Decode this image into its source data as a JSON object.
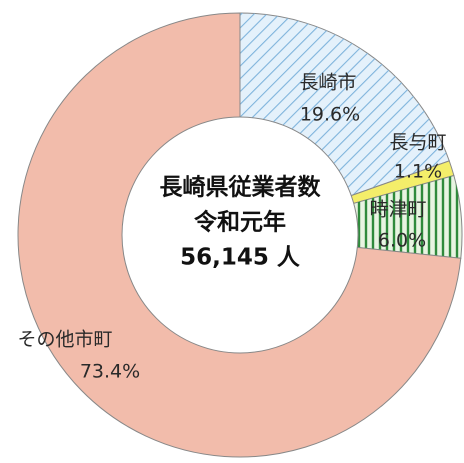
{
  "chart_data": {
    "type": "donut",
    "center_text": [
      "長崎県従業者数",
      "令和元年",
      "56,145 人"
    ],
    "categories": [
      "長崎市",
      "長与町",
      "時津町",
      "その他市町"
    ],
    "values": [
      19.6,
      1.1,
      6.0,
      73.4
    ],
    "value_labels": [
      "19.6%",
      "1.1%",
      "6.0%",
      "73.4%"
    ],
    "colors": [
      "#e4f1fb",
      "#f4ee6a",
      "#e8f4e2",
      "#f2bcab"
    ],
    "patterns": [
      "diagonal",
      null,
      "vertical",
      null
    ]
  }
}
